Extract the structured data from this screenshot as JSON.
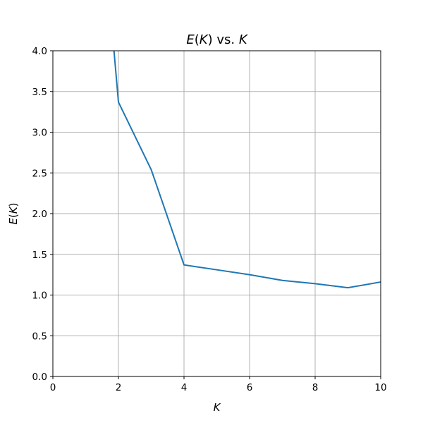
{
  "chart_data": {
    "type": "line",
    "title_parts": [
      {
        "text": "E",
        "italic": true
      },
      {
        "text": "(",
        "italic": false
      },
      {
        "text": "K",
        "italic": true
      },
      {
        "text": ") vs. ",
        "italic": false
      },
      {
        "text": "K",
        "italic": true
      }
    ],
    "xlabel": "K",
    "ylabel_parts": [
      {
        "text": "E",
        "italic": true
      },
      {
        "text": "(",
        "italic": false
      },
      {
        "text": "K",
        "italic": true
      },
      {
        "text": ")",
        "italic": false
      }
    ],
    "xlim": [
      0,
      10
    ],
    "ylim": [
      0,
      4.0
    ],
    "xticks": [
      0,
      2,
      4,
      6,
      8,
      10
    ],
    "xtick_labels": [
      "0",
      "2",
      "4",
      "6",
      "8",
      "10"
    ],
    "yticks": [
      0.0,
      0.5,
      1.0,
      1.5,
      2.0,
      2.5,
      3.0,
      3.5,
      4.0
    ],
    "ytick_labels": [
      "0.0",
      "0.5",
      "1.0",
      "1.5",
      "2.0",
      "2.5",
      "3.0",
      "3.5",
      "4.0"
    ],
    "grid": true,
    "series": [
      {
        "color": "#1f77b4",
        "x": [
          1,
          2,
          3,
          4,
          5,
          6,
          7,
          8,
          9,
          10
        ],
        "y": [
          8.0,
          3.37,
          2.54,
          1.37,
          1.31,
          1.25,
          1.18,
          1.14,
          1.09,
          1.16
        ]
      }
    ],
    "colors": {
      "grid": "#b0b0b0",
      "axes": "#000000"
    }
  }
}
